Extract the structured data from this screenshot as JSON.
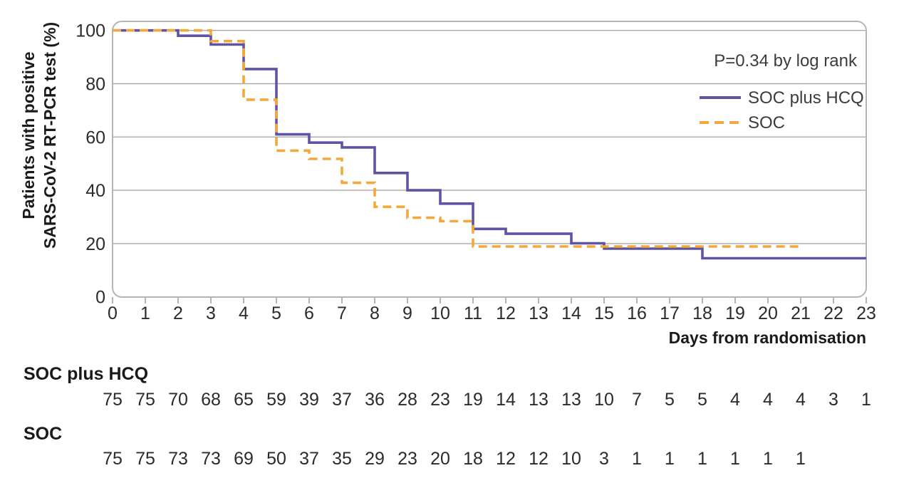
{
  "figure": {
    "p_value_label": "P=0.34 by log rank",
    "x_axis_title": "Days from randomisation",
    "y_axis_title_line1": "Patients with positive",
    "y_axis_title_line2": "SARS-CoV-2 RT-PCR test (%)"
  },
  "colors": {
    "hcq_purple": "#5e54a4",
    "soc_orange": "#f3a83b",
    "gridline": "#a9a9a9",
    "plot_border": "#b4b4b4",
    "tick_mark": "#b4b4b4"
  },
  "chart_data": {
    "type": "line",
    "subtype": "kaplan-meier-step",
    "title": "",
    "xlabel": "Days from randomisation",
    "ylabel": "Patients with positive SARS-CoV-2 RT-PCR test (%)",
    "annotation": "P=0.34 by log rank",
    "xlim": [
      0,
      23
    ],
    "ylim": [
      0,
      100
    ],
    "x_ticks": [
      0,
      1,
      2,
      3,
      4,
      5,
      6,
      7,
      8,
      9,
      10,
      11,
      12,
      13,
      14,
      15,
      16,
      17,
      18,
      19,
      20,
      21,
      22,
      23
    ],
    "y_ticks": [
      0,
      20,
      40,
      60,
      80,
      100
    ],
    "grid": "horizontal",
    "legend_position": "top-right-inside",
    "series": [
      {
        "name": "SOC plus HCQ",
        "color": "#5e54a4",
        "line_style": "solid",
        "end_day": 23,
        "steps_day_percent": [
          [
            0,
            100
          ],
          [
            2,
            98
          ],
          [
            3,
            94.7
          ],
          [
            4,
            85.5
          ],
          [
            5,
            61
          ],
          [
            6,
            57.9
          ],
          [
            7,
            56.1
          ],
          [
            8,
            46.5
          ],
          [
            9,
            40
          ],
          [
            10,
            35
          ],
          [
            11,
            25.5
          ],
          [
            12,
            23.7
          ],
          [
            14,
            20.1
          ],
          [
            15,
            18.1
          ],
          [
            18,
            14.5
          ]
        ]
      },
      {
        "name": "SOC",
        "color": "#f3a83b",
        "line_style": "dashed",
        "end_day": 21,
        "steps_day_percent": [
          [
            0,
            100
          ],
          [
            3,
            96
          ],
          [
            4,
            74
          ],
          [
            5,
            54.9
          ],
          [
            6,
            51.8
          ],
          [
            7,
            42.8
          ],
          [
            8,
            33.8
          ],
          [
            9,
            29.7
          ],
          [
            10,
            28.4
          ],
          [
            11,
            18.9
          ]
        ]
      }
    ],
    "risk_table": [
      {
        "label": "SOC plus HCQ",
        "values": [
          75,
          75,
          70,
          68,
          65,
          59,
          39,
          37,
          36,
          28,
          23,
          19,
          14,
          13,
          13,
          10,
          7,
          5,
          5,
          4,
          4,
          4,
          3,
          1
        ]
      },
      {
        "label": "SOC",
        "values": [
          75,
          75,
          73,
          73,
          69,
          50,
          37,
          35,
          29,
          23,
          20,
          18,
          12,
          12,
          10,
          3,
          1,
          1,
          1,
          1,
          1,
          1
        ]
      }
    ]
  }
}
